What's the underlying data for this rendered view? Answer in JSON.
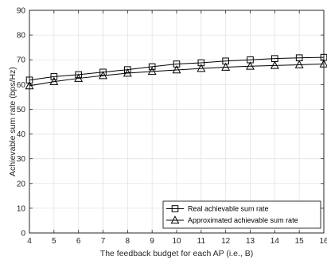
{
  "chart_data": {
    "type": "line",
    "xlabel": "The feedback budget for each AP (i.e., B)",
    "ylabel": "Achievable sum rate (bps/Hz)",
    "xlim": [
      4,
      16
    ],
    "ylim": [
      0,
      90
    ],
    "x": [
      4,
      5,
      6,
      7,
      8,
      9,
      10,
      11,
      12,
      13,
      14,
      15,
      16
    ],
    "x_tick_labels": [
      "4",
      "5",
      "6",
      "7",
      "8",
      "9",
      "10",
      "11",
      "12",
      "13",
      "14",
      "15",
      "16"
    ],
    "y_tick_labels": [
      "0",
      "10",
      "20",
      "30",
      "40",
      "50",
      "60",
      "70",
      "80",
      "90"
    ],
    "y_ticks": [
      0,
      10,
      20,
      30,
      40,
      50,
      60,
      70,
      80,
      90
    ],
    "grid": true,
    "legend_position": "bottom-right",
    "series": [
      {
        "name": "Real achievable sum rate",
        "marker": "square",
        "color": "#000000",
        "values": [
          61.8,
          63.2,
          64.0,
          65.0,
          66.0,
          67.2,
          68.3,
          68.8,
          69.5,
          70.0,
          70.5,
          70.8,
          71.0
        ]
      },
      {
        "name": "Approximated achievable sum rate",
        "marker": "triangle",
        "color": "#000000",
        "values": [
          59.5,
          61.2,
          62.5,
          63.6,
          64.6,
          65.3,
          65.9,
          66.5,
          67.0,
          67.4,
          67.7,
          68.0,
          68.3
        ]
      }
    ]
  }
}
